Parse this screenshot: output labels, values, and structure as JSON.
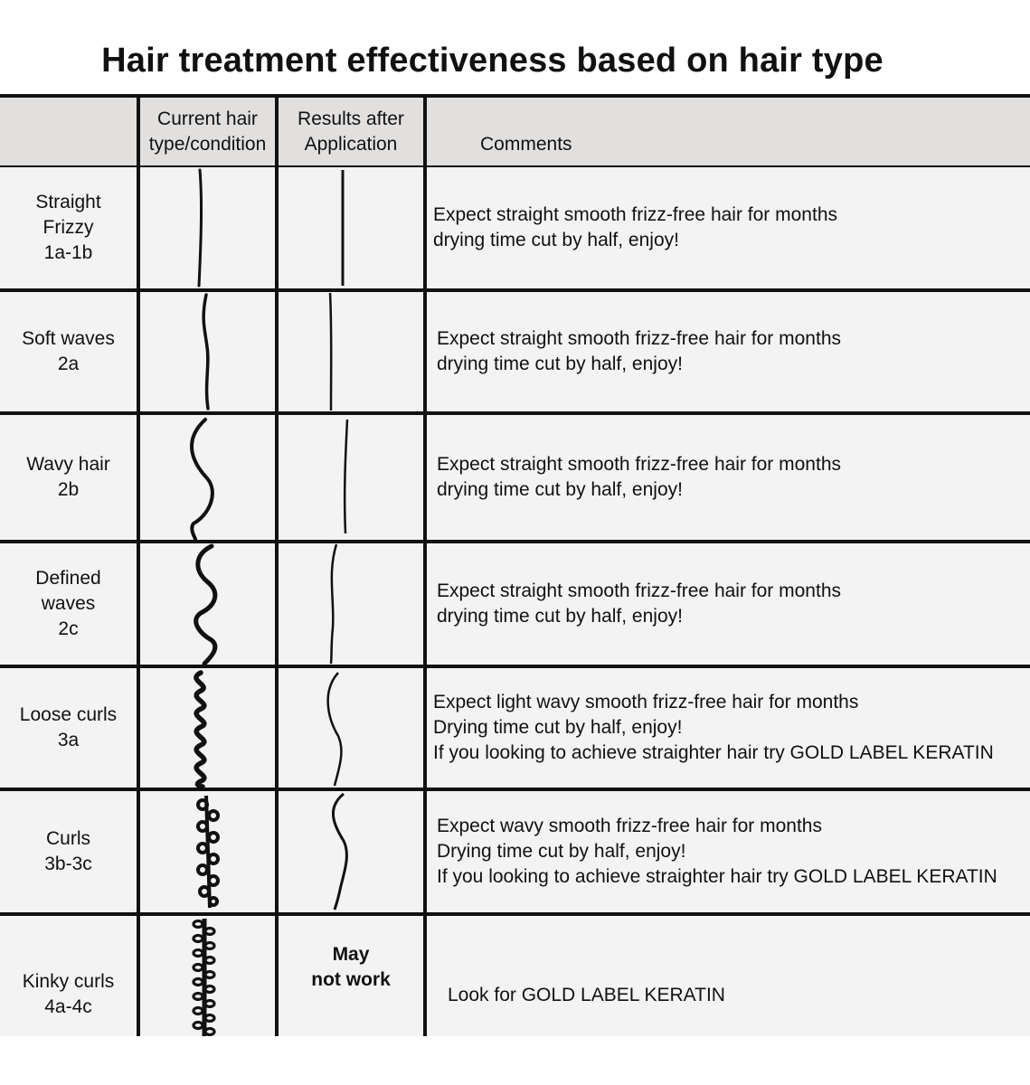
{
  "title": "Hair treatment effectiveness based on hair type",
  "columns": {
    "current": "Current hair\ntype/condition",
    "results": "Results after\nApplication",
    "comments": "Comments"
  },
  "rows": [
    {
      "type": "Straight\nFrizzy\n1a-1b",
      "result_text": "",
      "comment": "Expect straight smooth frizz-free hair for months\ndrying time cut by half, enjoy!",
      "current_icon": "straight-strand-icon",
      "result_icon": "straight-strand-icon"
    },
    {
      "type": "Soft waves\n2a",
      "result_text": "",
      "comment": "Expect straight smooth frizz-free hair for months\ndrying time cut by half, enjoy!",
      "current_icon": "soft-wave-strand-icon",
      "result_icon": "straight-strand-icon"
    },
    {
      "type": "Wavy hair\n2b",
      "result_text": "",
      "comment": "Expect straight smooth frizz-free hair for months\ndrying time cut by half, enjoy!",
      "current_icon": "wavy-strand-icon",
      "result_icon": "straight-strand-icon"
    },
    {
      "type": "Defined\nwaves\n2c",
      "result_text": "",
      "comment": "Expect straight smooth frizz-free hair for months\ndrying time cut by half, enjoy!",
      "current_icon": "defined-wave-strand-icon",
      "result_icon": "slight-wave-strand-icon"
    },
    {
      "type": "Loose curls\n3a",
      "result_text": "",
      "comment": "Expect light wavy smooth frizz-free hair for months\nDrying time cut by half, enjoy!\nIf you looking to achieve straighter hair try GOLD LABEL KERATIN",
      "current_icon": "loose-curl-strand-icon",
      "result_icon": "wavy-strand-icon"
    },
    {
      "type": "Curls\n3b-3c",
      "result_text": "",
      "comment": "Expect wavy smooth frizz-free hair for months\nDrying time cut by half, enjoy!\nIf you looking to achieve straighter hair try GOLD LABEL KERATIN",
      "current_icon": "tight-curl-strand-icon",
      "result_icon": "wavy-strand-icon"
    },
    {
      "type": "Kinky curls\n4a-4c",
      "result_text": "May\nnot work",
      "comment": "Look for GOLD LABEL KERATIN",
      "current_icon": "kinky-coil-strand-icon",
      "result_icon": ""
    }
  ],
  "colors": {
    "header_bg": "#e2e0df",
    "body_bg": "#f4f3f3",
    "lines": "#111111"
  }
}
